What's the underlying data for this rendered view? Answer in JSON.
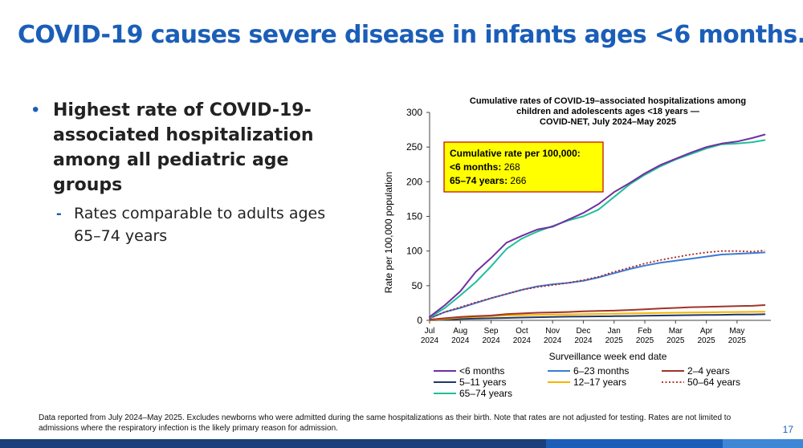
{
  "slide": {
    "title": "COVID-19 causes severe disease in infants ages <6 months.",
    "bullet_main": "Highest rate of COVID-19-associated hospitalization among all pediatric age groups",
    "bullet_sub": "Rates comparable to adults ages 65–74 years",
    "bullet_symbol": "•",
    "sub_bullet_symbol": "-",
    "footnote": "Data reported from July 2024–May 2025. Excludes newborns who were admitted during the same hospitalizations as their birth. Note that rates are not adjusted for testing. Rates are not limited to admissions where the respiratory infection is the likely primary reason for admission.",
    "page_number": "17",
    "colors": {
      "title": "#1b5eb8",
      "bar_dark": "#1a3f7a",
      "bar_mid": "#1b5eb8",
      "bar_light": "#3d87d6"
    }
  },
  "chart_data": {
    "type": "line",
    "title_lines": [
      "Cumulative rates of COVID-19–associated hospitalizations among",
      "children and adolescents ages <18 years —",
      "COVID-NET, July 2024–May 2025"
    ],
    "xlabel": "Surveillance week end date",
    "ylabel": "Rate per 100,000 population",
    "ylim": [
      0,
      300
    ],
    "yticks": [
      "0",
      "50",
      "100",
      "150",
      "200",
      "250",
      "300"
    ],
    "xticks": [
      {
        "month": "Jul",
        "year": "2024"
      },
      {
        "month": "Aug",
        "year": "2024"
      },
      {
        "month": "Sep",
        "year": "2024"
      },
      {
        "month": "Oct",
        "year": "2024"
      },
      {
        "month": "Nov",
        "year": "2024"
      },
      {
        "month": "Dec",
        "year": "2024"
      },
      {
        "month": "Jan",
        "year": "2025"
      },
      {
        "month": "Feb",
        "year": "2025"
      },
      {
        "month": "Mar",
        "year": "2025"
      },
      {
        "month": "Apr",
        "year": "2025"
      },
      {
        "month": "May",
        "year": "2025"
      }
    ],
    "annotation": {
      "heading": "Cumulative rate per 100,000:",
      "lines": [
        {
          "label": "<6 months:",
          "value": "268"
        },
        {
          "label": "65–74 years:",
          "value": "266"
        }
      ],
      "fill": "#ffff00",
      "border": "#c00000"
    },
    "x": [
      0,
      0.5,
      1,
      1.5,
      2,
      2.5,
      3,
      3.5,
      4,
      4.5,
      5,
      5.5,
      6,
      6.5,
      7,
      7.5,
      8,
      8.5,
      9,
      9.5,
      10,
      10.5,
      10.9
    ],
    "series": [
      {
        "name": "<6 months",
        "color": "#7030a0",
        "dash": "",
        "values": [
          5,
          22,
          42,
          70,
          90,
          112,
          122,
          131,
          135,
          145,
          155,
          168,
          185,
          198,
          212,
          224,
          233,
          242,
          250,
          255,
          258,
          263,
          268
        ]
      },
      {
        "name": "6–23 months",
        "color": "#3a7bd5",
        "dash": "",
        "values": [
          3,
          12,
          18,
          25,
          32,
          38,
          44,
          49,
          52,
          54,
          57,
          62,
          68,
          74,
          79,
          83,
          86,
          89,
          92,
          95,
          96,
          97,
          98
        ]
      },
      {
        "name": "2–4 years",
        "color": "#a0332b",
        "dash": "",
        "values": [
          1,
          3,
          5,
          6,
          7,
          9,
          10,
          11,
          11.5,
          12,
          13,
          13.5,
          14,
          15,
          16,
          17,
          18,
          19,
          19.5,
          20,
          20.5,
          21,
          22
        ]
      },
      {
        "name": "5–11 years",
        "color": "#1f3864",
        "dash": "",
        "values": [
          0,
          1,
          2,
          2.5,
          3,
          3.5,
          4,
          4.5,
          5,
          5.3,
          5.5,
          5.8,
          6,
          6.3,
          6.6,
          7,
          7.2,
          7.5,
          7.8,
          8,
          8.3,
          8.5,
          8.8
        ]
      },
      {
        "name": "12–17 years",
        "color": "#f5b400",
        "dash": "",
        "values": [
          0.5,
          2,
          4,
          5,
          6,
          7,
          7.5,
          8,
          8.3,
          8.6,
          9,
          9.3,
          9.6,
          10,
          10.3,
          10.6,
          11,
          11.2,
          11.5,
          11.8,
          12,
          12.3,
          12.5
        ]
      },
      {
        "name": "50–64 years",
        "color": "#b02020",
        "dash": "2,2.5",
        "values": [
          3,
          12,
          19,
          26,
          32,
          38,
          44,
          48,
          51,
          54,
          58,
          63,
          70,
          76,
          82,
          87,
          91,
          95,
          98,
          100,
          100,
          99,
          101
        ]
      },
      {
        "name": "65–74 years",
        "color": "#1fbf9a",
        "dash": "",
        "values": [
          4,
          18,
          36,
          55,
          78,
          103,
          118,
          128,
          136,
          144,
          150,
          160,
          178,
          196,
          210,
          222,
          232,
          240,
          248,
          254,
          255,
          257,
          260
        ]
      }
    ],
    "legend_rows": [
      [
        "<6 months",
        "6–23 months",
        "2–4 years"
      ],
      [
        "5–11 years",
        "12–17 years",
        "50–64 years"
      ],
      [
        "65–74 years"
      ]
    ]
  }
}
